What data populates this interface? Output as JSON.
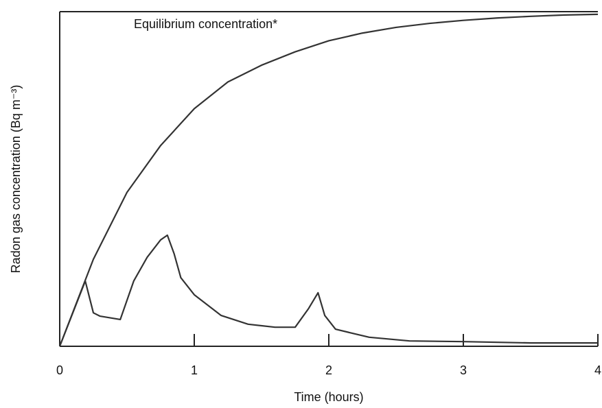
{
  "chart_data": {
    "type": "line",
    "xlabel": "Time (hours)",
    "ylabel": "Radon gas concentration (Bq m⁻³)",
    "annotation": "Equilibrium concentration*",
    "xlim": [
      0,
      4
    ],
    "xticks": [
      0,
      1,
      2,
      3,
      4
    ],
    "ylim": [
      0,
      100
    ],
    "series": [
      {
        "color": "#333333",
        "x": [
          0,
          0.25,
          0.5,
          0.75,
          1,
          1.25,
          1.5,
          1.75,
          2,
          2.25,
          2.5,
          2.75,
          3,
          3.25,
          3.5,
          3.75,
          4
        ],
        "values": [
          0,
          26,
          46,
          60,
          71,
          79,
          84,
          88,
          91.3,
          93.6,
          95.3,
          96.5,
          97.4,
          98.1,
          98.6,
          99,
          99.2
        ]
      },
      {
        "color": "#333333",
        "x": [
          0,
          0.19,
          0.25,
          0.3,
          0.45,
          0.55,
          0.65,
          0.75,
          0.8,
          0.85,
          0.9,
          1,
          1.2,
          1.4,
          1.6,
          1.75,
          1.85,
          1.92,
          1.97,
          2.05,
          2.3,
          2.6,
          3,
          3.5,
          4
        ],
        "values": [
          0,
          19.5,
          10,
          9,
          8,
          19.5,
          26.6,
          31.8,
          33.2,
          27.7,
          20.5,
          15.4,
          9.2,
          6.6,
          5.7,
          5.7,
          11.3,
          16,
          9.2,
          5.1,
          2.7,
          1.6,
          1.4,
          1,
          1
        ]
      }
    ]
  }
}
